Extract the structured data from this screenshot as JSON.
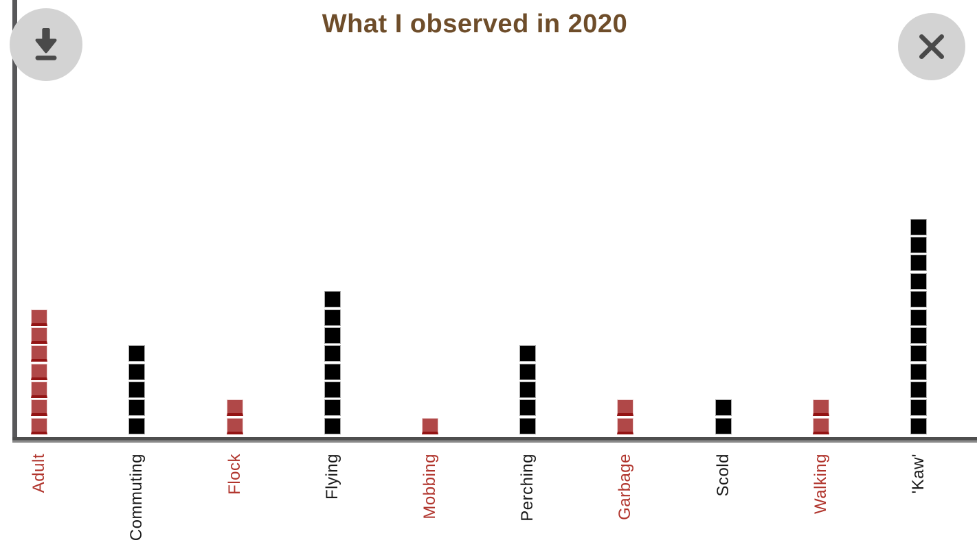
{
  "title": "What I observed in 2020",
  "ui": {
    "download_button": {
      "icon": "download-icon"
    },
    "close_button": {
      "icon": "close-icon",
      "glyph": "✕"
    }
  },
  "colors": {
    "title_color": "#6e4d2a",
    "axis_color": "#58585a",
    "button_bg": "#d3d3d3",
    "button_icon": "#4a4a4a",
    "red_cell": "#b04848",
    "red_cell_edge": "#931414",
    "black_cell": "#000000",
    "red_label": "#b0342c",
    "black_label": "#1b1b1b"
  },
  "chart_data": {
    "type": "bar",
    "subtype": "pictograph-stacked-unit-squares",
    "title": "What I observed in 2020",
    "categories": [
      "Adult",
      "Commuting",
      "Flock",
      "Flying",
      "Mobbing",
      "Perching",
      "Garbage",
      "Scold",
      "Walking",
      "'Kaw'"
    ],
    "values": [
      7,
      5,
      2,
      8,
      1,
      5,
      2,
      2,
      2,
      12
    ],
    "colors": [
      "red",
      "black",
      "red",
      "black",
      "red",
      "black",
      "red",
      "black",
      "red",
      "black"
    ],
    "unit_per_square": 1,
    "xlabel": "",
    "ylabel": "",
    "ylim": [
      0,
      13
    ],
    "grid": false,
    "legend": false,
    "x_label_rotation_deg": 90
  }
}
